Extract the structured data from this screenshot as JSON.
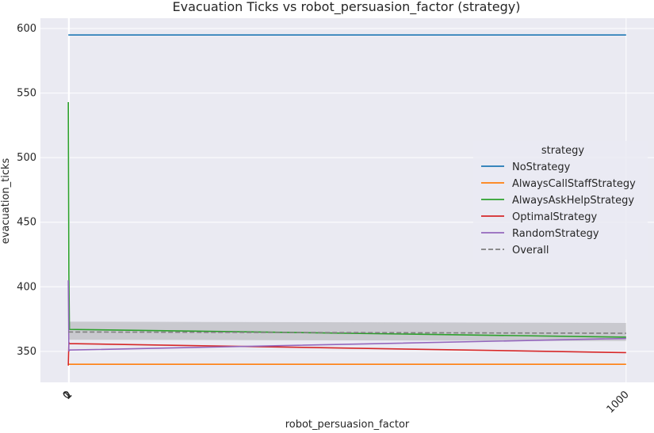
{
  "chart_data": {
    "type": "line",
    "title": "Evacuation Ticks vs robot_persuasion_factor (strategy)",
    "xlabel": "robot_persuasion_factor",
    "ylabel": "evacuation_ticks",
    "xlim": [
      -50,
      1050
    ],
    "ylim": [
      326,
      608
    ],
    "x_ticks": [
      0,
      1,
      2,
      1000
    ],
    "x_tick_labels": [
      "0",
      "1",
      "2",
      "1000"
    ],
    "x_tick_rotation": 45,
    "y_ticks": [
      350,
      400,
      450,
      500,
      550,
      600
    ],
    "y_tick_labels": [
      "350",
      "400",
      "450",
      "500",
      "550",
      "600"
    ],
    "grid": true,
    "background": "#eaeaf2",
    "legend": {
      "title": "strategy",
      "placement": "center-right"
    },
    "series": [
      {
        "name": "NoStrategy",
        "color": "#1f77b4",
        "dash": false,
        "x": [
          0,
          1,
          2,
          1000
        ],
        "y": [
          595,
          595,
          595,
          595
        ]
      },
      {
        "name": "AlwaysCallStaffStrategy",
        "color": "#ff7f0e",
        "dash": false,
        "x": [
          0,
          1,
          2,
          1000
        ],
        "y": [
          340,
          340,
          340,
          340
        ]
      },
      {
        "name": "AlwaysAskHelpStrategy",
        "color": "#2ca02c",
        "dash": false,
        "x": [
          0,
          1,
          2,
          1000
        ],
        "y": [
          543,
          410,
          367,
          361
        ]
      },
      {
        "name": "OptimalStrategy",
        "color": "#d62728",
        "dash": false,
        "x": [
          0,
          1,
          2,
          1000
        ],
        "y": [
          339,
          357,
          356,
          349
        ]
      },
      {
        "name": "RandomStrategy",
        "color": "#9467bd",
        "dash": false,
        "x": [
          0,
          1,
          2,
          1000
        ],
        "y": [
          405,
          350,
          351,
          360
        ]
      },
      {
        "name": "Overall",
        "color": "#7f7f7f",
        "dash": true,
        "x": [
          0,
          1,
          2,
          1000
        ],
        "y": [
          365,
          365,
          365,
          364
        ],
        "ci_lower": [
          359,
          359,
          359,
          358
        ],
        "ci_upper": [
          373,
          373,
          373,
          372
        ]
      }
    ]
  }
}
